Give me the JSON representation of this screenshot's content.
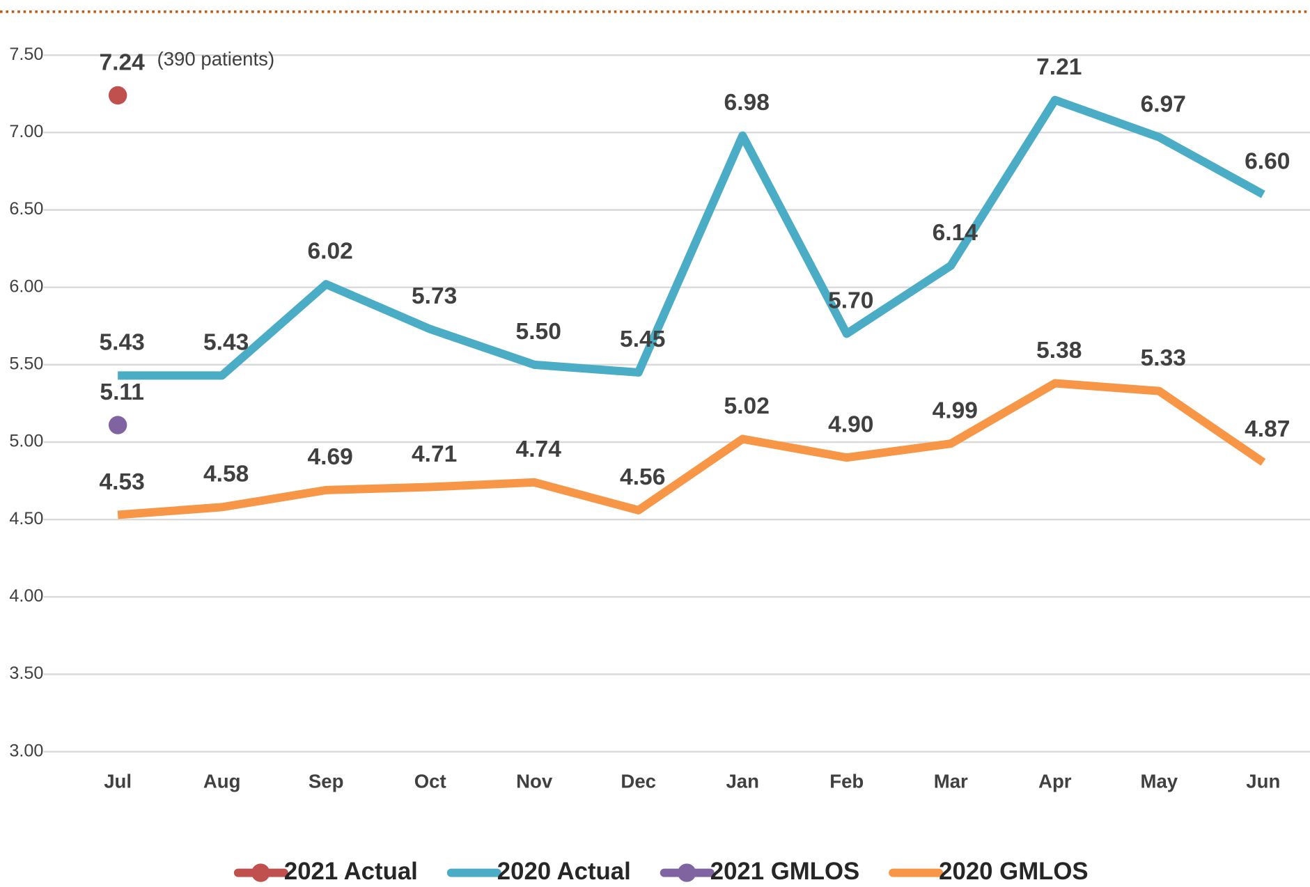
{
  "chart_data": {
    "type": "line",
    "annotation": "(390 patients)",
    "categories": [
      "Jul",
      "Aug",
      "Sep",
      "Oct",
      "Nov",
      "Dec",
      "Jan",
      "Feb",
      "Mar",
      "Apr",
      "May",
      "Jun"
    ],
    "series": [
      {
        "name": "2021 Actual",
        "color": "#c0504d",
        "style": "marker",
        "values": [
          7.24,
          null,
          null,
          null,
          null,
          null,
          null,
          null,
          null,
          null,
          null,
          null
        ],
        "value_labels": [
          "7.24",
          null,
          null,
          null,
          null,
          null,
          null,
          null,
          null,
          null,
          null,
          null
        ]
      },
      {
        "name": "2020 Actual",
        "color": "#4bacc6",
        "style": "line",
        "values": [
          5.43,
          5.43,
          6.02,
          5.73,
          5.5,
          5.45,
          6.98,
          5.7,
          6.14,
          7.21,
          6.97,
          6.6
        ],
        "value_labels": [
          "5.43",
          "5.43",
          "6.02",
          "5.73",
          "5.50",
          "5.45",
          "6.98",
          "5.70",
          "6.14",
          "7.21",
          "6.97",
          "6.60"
        ]
      },
      {
        "name": "2021 GMLOS",
        "color": "#8064a2",
        "style": "marker",
        "values": [
          5.11,
          null,
          null,
          null,
          null,
          null,
          null,
          null,
          null,
          null,
          null,
          null
        ],
        "value_labels": [
          "5.11",
          null,
          null,
          null,
          null,
          null,
          null,
          null,
          null,
          null,
          null,
          null
        ]
      },
      {
        "name": "2020 GMLOS",
        "color": "#f79646",
        "style": "line",
        "values": [
          4.53,
          4.58,
          4.69,
          4.71,
          4.74,
          4.56,
          5.02,
          4.9,
          4.99,
          5.38,
          5.33,
          4.87
        ],
        "value_labels": [
          "4.53",
          "4.58",
          "4.69",
          "4.71",
          "4.74",
          "4.56",
          "5.02",
          "4.90",
          "4.99",
          "5.38",
          "5.33",
          "4.87"
        ]
      }
    ],
    "ylim": [
      3,
      7.5
    ],
    "yticks": [
      {
        "value": 3,
        "label": "3.00"
      },
      {
        "value": 3.5,
        "label": "3.50"
      },
      {
        "value": 4,
        "label": "4.00"
      },
      {
        "value": 4.5,
        "label": "4.50"
      },
      {
        "value": 5,
        "label": "5.00"
      },
      {
        "value": 5.5,
        "label": "5.50"
      },
      {
        "value": 6,
        "label": "6.00"
      },
      {
        "value": 6.5,
        "label": "6.50"
      },
      {
        "value": 7,
        "label": "7.00"
      },
      {
        "value": 7.5,
        "label": "7.50"
      }
    ],
    "grid": true,
    "legend": "bottom"
  }
}
